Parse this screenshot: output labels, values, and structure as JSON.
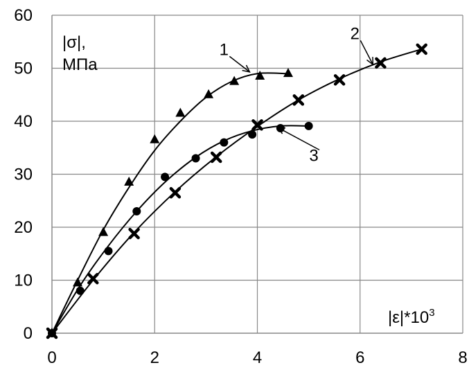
{
  "chart_data": {
    "type": "scatter",
    "title": "",
    "xlabel": "|ε|*10",
    "xlabel_superscript": "3",
    "ylabel_line1": "|σ|,",
    "ylabel_line2": "МПа",
    "xlim": [
      0,
      8
    ],
    "ylim": [
      0,
      60
    ],
    "xticks": [
      "0",
      "2",
      "4",
      "6",
      "8"
    ],
    "yticks": [
      "0",
      "10",
      "20",
      "30",
      "40",
      "50",
      "60"
    ],
    "grid": true,
    "legend": "none",
    "series": [
      {
        "name": "1",
        "marker": "triangle",
        "points": [
          [
            0,
            0
          ],
          [
            0.5,
            9.5
          ],
          [
            1.0,
            19
          ],
          [
            1.5,
            28.5
          ],
          [
            2.0,
            36.5
          ],
          [
            2.5,
            41.5
          ],
          [
            3.05,
            45
          ],
          [
            3.55,
            47.5
          ],
          [
            4.05,
            48.5
          ],
          [
            4.6,
            49
          ]
        ],
        "curve": [
          [
            0,
            0
          ],
          [
            0.5,
            10
          ],
          [
            1.0,
            19.5
          ],
          [
            1.5,
            27.5
          ],
          [
            2.0,
            34.5
          ],
          [
            2.5,
            40
          ],
          [
            3.0,
            44.5
          ],
          [
            3.5,
            47.5
          ],
          [
            4.0,
            49
          ],
          [
            4.55,
            49
          ]
        ]
      },
      {
        "name": "2",
        "marker": "x",
        "points": [
          [
            0,
            0
          ],
          [
            0.8,
            10.3
          ],
          [
            1.6,
            18.8
          ],
          [
            2.4,
            26.5
          ],
          [
            3.2,
            33.2
          ],
          [
            4.0,
            39.3
          ],
          [
            4.8,
            44
          ],
          [
            5.6,
            47.8
          ],
          [
            6.4,
            51
          ],
          [
            7.2,
            53.6
          ]
        ],
        "curve": [
          [
            0,
            0
          ],
          [
            0.8,
            10
          ],
          [
            1.6,
            19
          ],
          [
            2.4,
            26.7
          ],
          [
            3.2,
            33.3
          ],
          [
            4.0,
            39
          ],
          [
            4.8,
            44
          ],
          [
            5.6,
            48
          ],
          [
            6.4,
            51.2
          ],
          [
            7.2,
            53.6
          ]
        ]
      },
      {
        "name": "3",
        "marker": "circle",
        "points": [
          [
            0,
            0
          ],
          [
            0.55,
            8
          ],
          [
            1.1,
            15.5
          ],
          [
            1.65,
            23
          ],
          [
            2.2,
            29.5
          ],
          [
            2.8,
            33
          ],
          [
            3.35,
            36
          ],
          [
            3.9,
            37.5
          ],
          [
            4.45,
            38.7
          ],
          [
            5.0,
            39.1
          ]
        ],
        "curve": [
          [
            0,
            0
          ],
          [
            0.55,
            9
          ],
          [
            1.1,
            16.5
          ],
          [
            1.65,
            23
          ],
          [
            2.2,
            28.5
          ],
          [
            2.8,
            33.2
          ],
          [
            3.35,
            36.3
          ],
          [
            3.9,
            38.2
          ],
          [
            4.45,
            39.1
          ],
          [
            5.0,
            39.1
          ]
        ]
      }
    ],
    "annotations": [
      {
        "text": "1",
        "label_at": [
          3.35,
          52.5
        ],
        "arrow_to": [
          3.85,
          49.3
        ]
      },
      {
        "text": "2",
        "label_at": [
          5.9,
          55.5
        ],
        "arrow_to": [
          6.25,
          50.7
        ]
      },
      {
        "text": "3",
        "label_at": [
          5.1,
          32.5
        ],
        "arrow_to": [
          4.4,
          38.8
        ]
      }
    ]
  }
}
